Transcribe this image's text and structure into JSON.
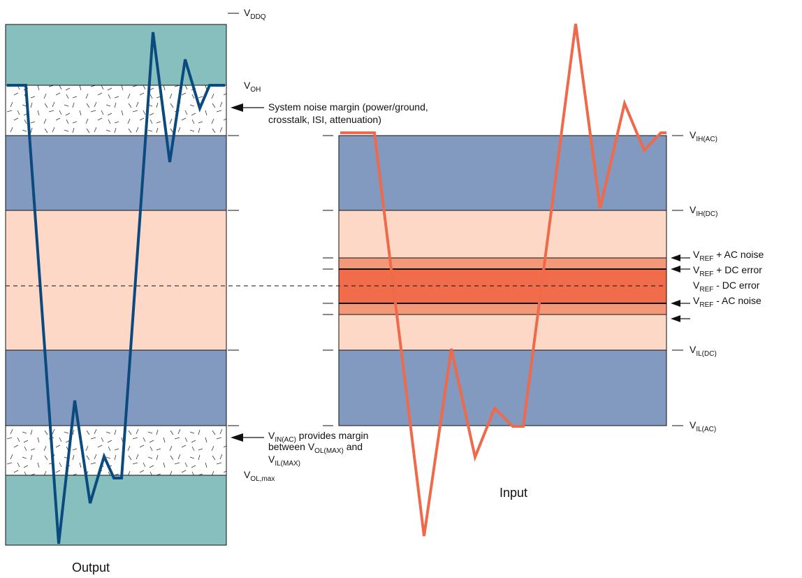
{
  "captions": {
    "output": "Output",
    "input": "Input"
  },
  "output_panel": {
    "labels": {
      "vddq": {
        "main": "V",
        "sub": "DDQ"
      },
      "voh": {
        "main": "V",
        "sub": "OH"
      },
      "vol": {
        "main": "V",
        "sub": "OL,max"
      }
    },
    "annotations": {
      "noise_line1": "System noise margin (power/ground,",
      "noise_line2": "crosstalk, ISI, attenuation)",
      "vin_sub": "IN(AC)",
      "vin_rest": " provides margin",
      "between": "between V",
      "vol_sub": "OL(MAX)",
      "and": " and",
      "vil_sub": "IL(MAX)"
    }
  },
  "input_panel": {
    "labels": {
      "vih_ac": {
        "main": "V",
        "sub": "IH(AC)"
      },
      "vih_dc": {
        "main": "V",
        "sub": "IH(DC)"
      },
      "vref_ac_plus": {
        "main": "V",
        "sub": "REF",
        "suffix": " + AC noise"
      },
      "vref_dc_plus": {
        "main": "V",
        "sub": "REF",
        "suffix": " + DC error"
      },
      "vref_dc_minus": {
        "main": "V",
        "sub": "REF",
        "suffix": " - DC error"
      },
      "vref_ac_minus": {
        "main": "V",
        "sub": "REF",
        "suffix": " - AC noise"
      },
      "vil_dc": {
        "main": "V",
        "sub": "IL(DC)"
      },
      "vil_ac": {
        "main": "V",
        "sub": "IL(AC)"
      }
    }
  },
  "colors": {
    "teal": "#87bfbe",
    "blue": "#8299c0",
    "peach": "#fdd8c6",
    "salmon": "#f4987a",
    "red": "#f06c4b",
    "output_wave": "#0b4a7e",
    "input_wave": "#ee6a4b"
  }
}
